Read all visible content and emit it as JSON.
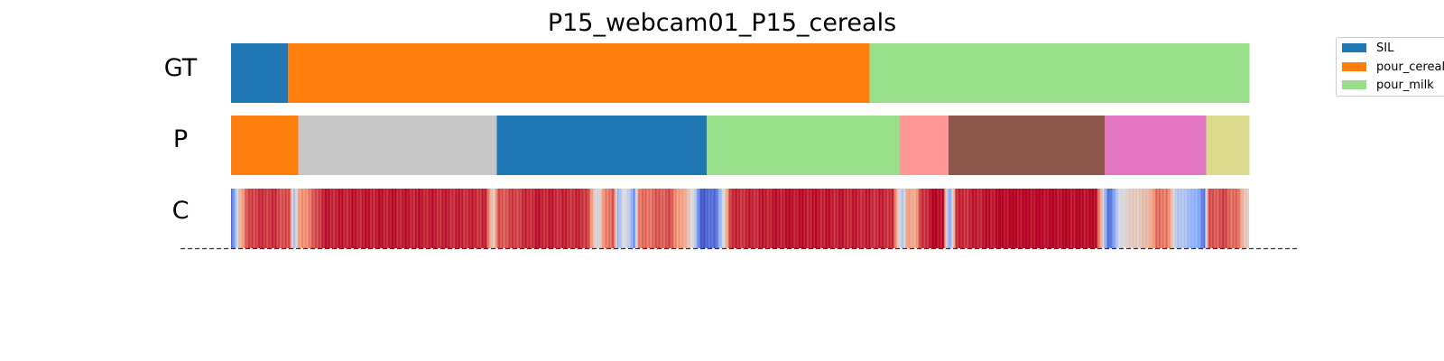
{
  "chart_data": {
    "type": "segmentation-timeline",
    "title": "P15_webcam01_P15_cereals",
    "x_range": [
      0,
      1000
    ],
    "rows": [
      {
        "label": "GT",
        "segments": [
          {
            "start": 0,
            "end": 56,
            "class": "SIL"
          },
          {
            "start": 56,
            "end": 627,
            "class": "pour_cereals"
          },
          {
            "start": 627,
            "end": 1000,
            "class": "pour_milk"
          }
        ]
      },
      {
        "label": "P",
        "segments": [
          {
            "start": 0,
            "end": 66,
            "color": "#ff7f0e"
          },
          {
            "start": 66,
            "end": 261,
            "color": "#c7c7c7"
          },
          {
            "start": 261,
            "end": 467,
            "color": "#1f77b4"
          },
          {
            "start": 467,
            "end": 657,
            "color": "#98df8a"
          },
          {
            "start": 657,
            "end": 705,
            "color": "#ff9896"
          },
          {
            "start": 705,
            "end": 858,
            "color": "#8c564b"
          },
          {
            "start": 858,
            "end": 958,
            "color": "#e377c2"
          },
          {
            "start": 958,
            "end": 1000,
            "color": "#dbdb8d"
          }
        ]
      },
      {
        "label": "C",
        "colormap": "coolwarm",
        "value_range": [
          0,
          1
        ],
        "confidence": [
          [
            0,
            0.05
          ],
          [
            4,
            0.25
          ],
          [
            8,
            0.65
          ],
          [
            14,
            0.82
          ],
          [
            20,
            0.9
          ],
          [
            40,
            0.92
          ],
          [
            58,
            0.85
          ],
          [
            62,
            0.3
          ],
          [
            66,
            0.7
          ],
          [
            70,
            0.75
          ],
          [
            82,
            0.85
          ],
          [
            90,
            0.95
          ],
          [
            160,
            0.96
          ],
          [
            250,
            0.93
          ],
          [
            258,
            0.55
          ],
          [
            262,
            0.85
          ],
          [
            300,
            0.95
          ],
          [
            350,
            0.92
          ],
          [
            360,
            0.45
          ],
          [
            366,
            0.75
          ],
          [
            376,
            0.88
          ],
          [
            380,
            0.25
          ],
          [
            386,
            0.55
          ],
          [
            392,
            0.35
          ],
          [
            396,
            0.15
          ],
          [
            400,
            0.8
          ],
          [
            430,
            0.87
          ],
          [
            448,
            0.65
          ],
          [
            455,
            0.45
          ],
          [
            458,
            0.2
          ],
          [
            462,
            0.05
          ],
          [
            476,
            0.1
          ],
          [
            482,
            0.35
          ],
          [
            490,
            0.92
          ],
          [
            550,
            0.97
          ],
          [
            650,
            0.93
          ],
          [
            656,
            0.55
          ],
          [
            660,
            0.35
          ],
          [
            664,
            0.72
          ],
          [
            672,
            0.7
          ],
          [
            678,
            0.9
          ],
          [
            690,
            0.99
          ],
          [
            700,
            0.98
          ],
          [
            703,
            0.45
          ],
          [
            706,
            0.2
          ],
          [
            712,
            0.92
          ],
          [
            760,
            0.99
          ],
          [
            850,
            0.98
          ],
          [
            856,
            0.6
          ],
          [
            858,
            0.3
          ],
          [
            862,
            0.08
          ],
          [
            868,
            0.25
          ],
          [
            872,
            0.45
          ],
          [
            880,
            0.55
          ],
          [
            900,
            0.62
          ],
          [
            908,
            0.8
          ],
          [
            920,
            0.82
          ],
          [
            928,
            0.4
          ],
          [
            944,
            0.3
          ],
          [
            952,
            0.2
          ],
          [
            956,
            0.1
          ],
          [
            960,
            0.85
          ],
          [
            975,
            0.88
          ],
          [
            990,
            0.8
          ],
          [
            996,
            0.6
          ],
          [
            1000,
            0.55
          ]
        ]
      }
    ],
    "legend": {
      "placement": "outside-top-right",
      "entries": [
        {
          "label": "SIL",
          "color": "#1f77b4"
        },
        {
          "label": "pour_cereals",
          "color": "#ff7f0e"
        },
        {
          "label": "pour_milk",
          "color": "#98df8a"
        }
      ]
    },
    "baseline": {
      "style": "dashed",
      "color": "#333333"
    },
    "axes_visible": false,
    "grid": false
  }
}
